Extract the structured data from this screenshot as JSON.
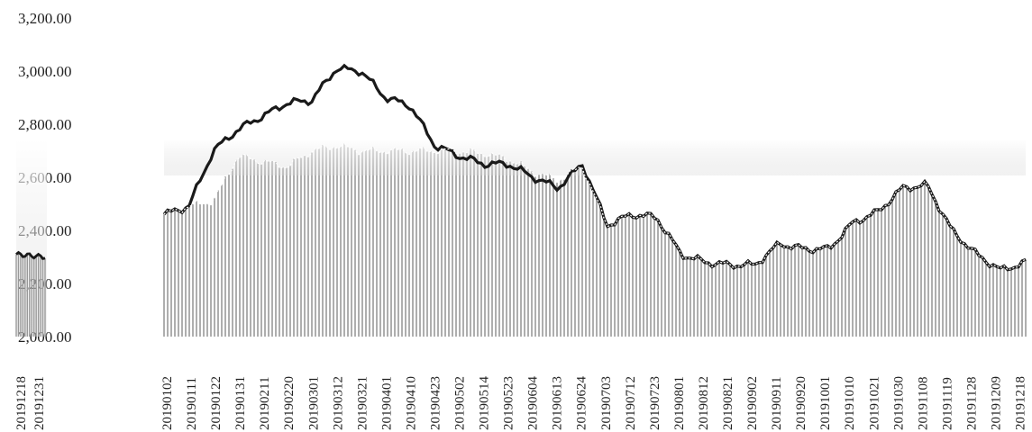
{
  "chart_data": {
    "type": "area",
    "title": "",
    "xlabel": "",
    "ylabel": "",
    "ylim": [
      2000,
      3200
    ],
    "y_ticks": [
      "2,000.00",
      "2,200.00",
      "2,400.00",
      "2,600.00",
      "2,800.00",
      "3,000.00",
      "3,200.00"
    ],
    "x_tick_labels": [
      "20190102",
      "20190111",
      "20190122",
      "20190131",
      "20190211",
      "20190220",
      "20190301",
      "20190312",
      "20190321",
      "20190401",
      "20190410",
      "20190423",
      "20190502",
      "20190514",
      "20190523",
      "20190604",
      "20190613",
      "20190624",
      "20190703",
      "20190712",
      "20190723",
      "20190801",
      "20190812",
      "20190821",
      "20190902",
      "20190911",
      "20190920",
      "20191001",
      "20191010",
      "20191021",
      "20191030",
      "20191108",
      "20191119",
      "20191128",
      "20191209",
      "20191218"
    ],
    "inset_x_tick_labels": [
      "20191218",
      "20191231"
    ],
    "series_main": {
      "x": [
        "20190102",
        "20190111",
        "20190122",
        "20190131",
        "20190211",
        "20190220",
        "20190301",
        "20190312",
        "20190321",
        "20190401",
        "20190410",
        "20190423",
        "20190502",
        "20190514",
        "20190523",
        "20190604",
        "20190613",
        "20190624",
        "20190703",
        "20190712",
        "20190723",
        "20190801",
        "20190812",
        "20190821",
        "20190902",
        "20190911",
        "20190920",
        "20191001",
        "20191010",
        "20191021",
        "20191030",
        "20191108",
        "20191119",
        "20191128",
        "20191209",
        "20191218"
      ],
      "values": [
        2460,
        2490,
        2700,
        2780,
        2830,
        2880,
        2890,
        3010,
        3000,
        2900,
        2870,
        2720,
        2680,
        2650,
        2650,
        2600,
        2560,
        2650,
        2420,
        2460,
        2450,
        2310,
        2280,
        2270,
        2270,
        2350,
        2330,
        2330,
        2430,
        2470,
        2560,
        2570,
        2400,
        2310,
        2250,
        2280
      ]
    },
    "series_overlay": {
      "x": [
        "20190102",
        "20190111",
        "20190122",
        "20190131",
        "20190211",
        "20190220",
        "20190301",
        "20190312",
        "20190321",
        "20190401",
        "20190410",
        "20190423",
        "20190502",
        "20190514",
        "20190523",
        "20190604",
        "20190613",
        "20190624",
        "20190703",
        "20190712",
        "20190723",
        "20190801",
        "20190812",
        "20190821",
        "20190902",
        "20190911",
        "20190920",
        "20191001",
        "20191010",
        "20191021",
        "20191030",
        "20191108",
        "20191119",
        "20191128",
        "20191209",
        "20191218"
      ],
      "values": [
        2460,
        2490,
        2510,
        2680,
        2660,
        2640,
        2700,
        2720,
        2700,
        2700,
        2700,
        2700,
        2700,
        2690,
        2670,
        2620,
        2590,
        2640,
        2420,
        2460,
        2450,
        2310,
        2280,
        2270,
        2270,
        2350,
        2330,
        2330,
        2430,
        2470,
        2560,
        2570,
        2400,
        2310,
        2250,
        2280
      ]
    },
    "inset_series": {
      "x": [
        "20191218",
        "20191231"
      ],
      "values": [
        2310,
        2300
      ]
    },
    "colors": {
      "bars": "#9a9a9a",
      "line": "#1a1a1a",
      "highlight": "#ffffff"
    },
    "grid": false,
    "legend": "none"
  }
}
